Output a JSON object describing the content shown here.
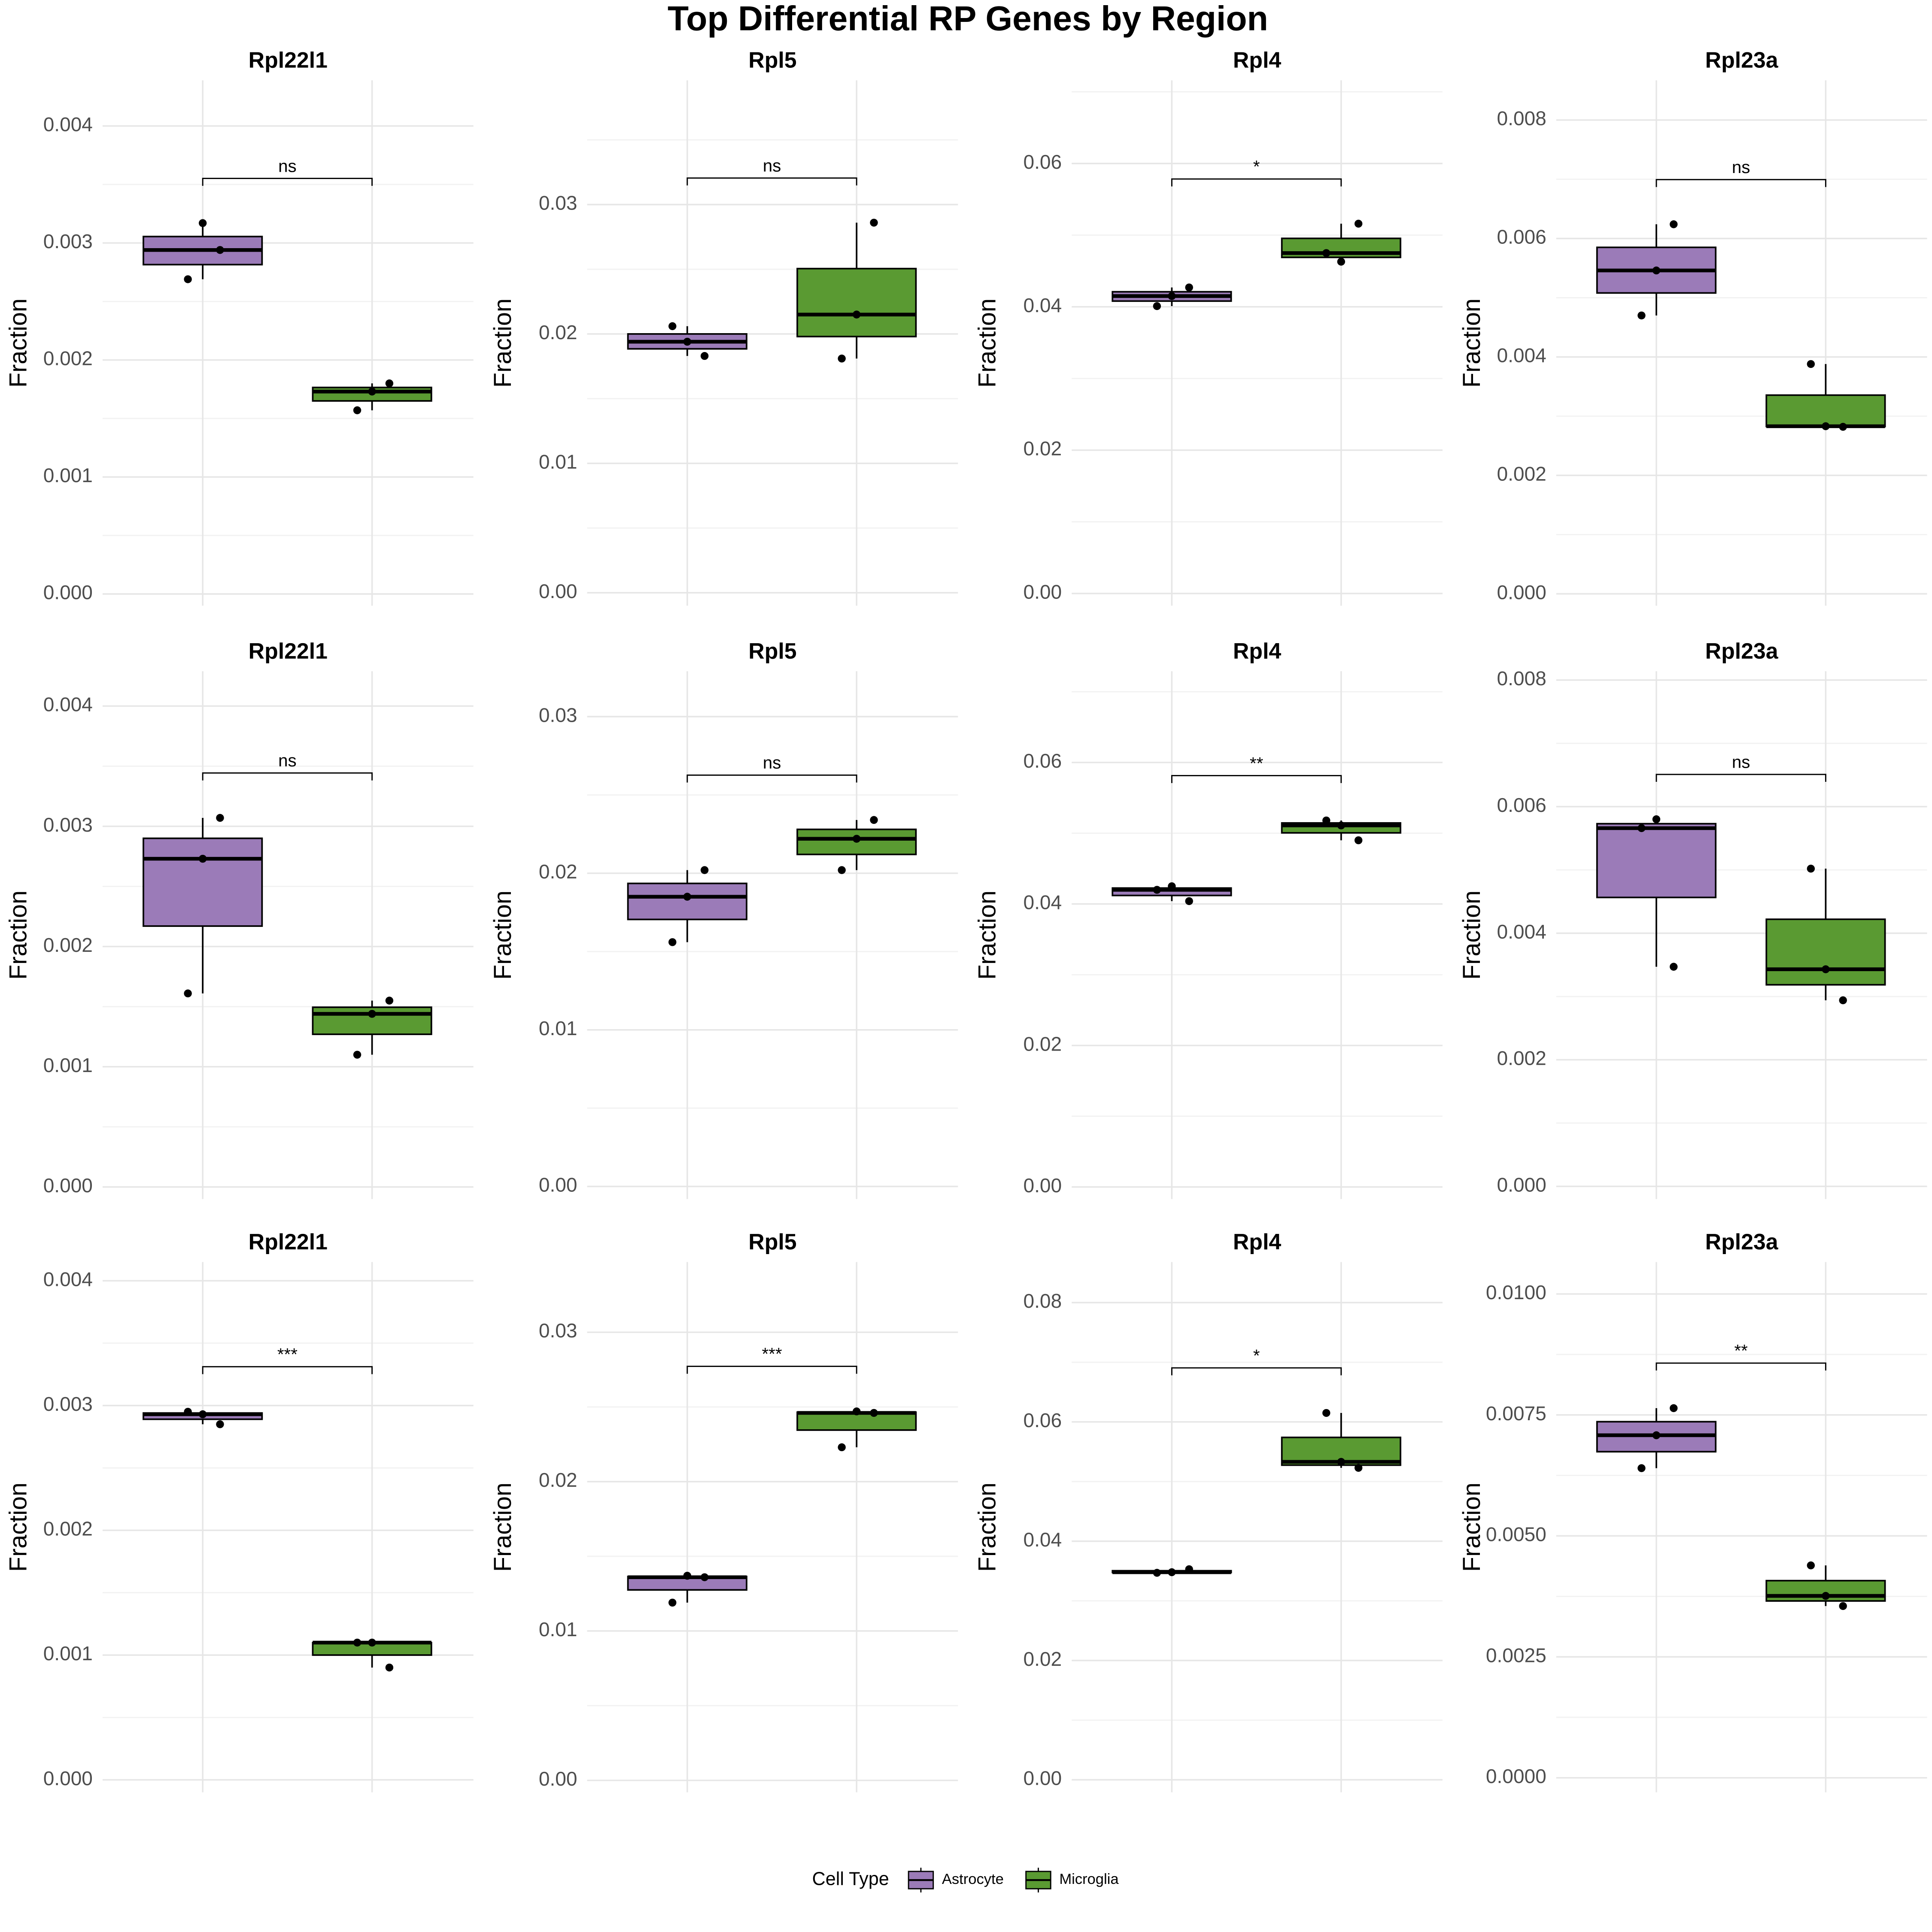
{
  "title": "Top Differential RP Genes by Region",
  "legend": {
    "title": "Cell Type",
    "items": [
      {
        "name": "Astrocyte",
        "color": "#9b7bb8"
      },
      {
        "name": "Microglia",
        "color": "#5a9a32"
      }
    ]
  },
  "chart_data": [
    {
      "type": "box",
      "title": "Rpl22l1",
      "y_label": "Fraction",
      "significance": "ns",
      "ylim": [
        -0.0001,
        0.00439
      ],
      "yticks": [
        {
          "value": 0,
          "label": "0.000"
        },
        0.001,
        0.002,
        0.003,
        0.004
      ],
      "series": [
        {
          "whisker_low": 0.00269,
          "q1": 0.002815,
          "median": 0.00294,
          "q3": 0.003055,
          "whisker_high": 0.00317,
          "points": [
            0.00269,
            0.00294,
            0.00317
          ]
        },
        {
          "whisker_low": 0.00157,
          "q1": 0.00165,
          "median": 0.00173,
          "q3": 0.001765,
          "whisker_high": 0.0018,
          "points": [
            0.00157,
            0.0018,
            0.00173
          ]
        }
      ]
    },
    {
      "type": "box",
      "title": "Rpl5",
      "y_label": "Fraction",
      "significance": "ns",
      "ylim": [
        -0.001,
        0.0396
      ],
      "yticks": [
        {
          "value": 0,
          "label": "0.00"
        },
        0.01,
        0.02,
        0.03
      ],
      "series": [
        {
          "whisker_low": 0.0183,
          "q1": 0.01885,
          "median": 0.0194,
          "q3": 0.02,
          "whisker_high": 0.0206,
          "points": [
            0.0206,
            0.0183,
            0.0194
          ]
        },
        {
          "whisker_low": 0.0181,
          "q1": 0.0198,
          "median": 0.0215,
          "q3": 0.02505,
          "whisker_high": 0.0286,
          "points": [
            0.0181,
            0.0286,
            0.0215
          ]
        }
      ]
    },
    {
      "type": "box",
      "title": "Rpl4",
      "y_label": "Fraction",
      "significance": "*",
      "ylim": [
        -0.0017,
        0.0716
      ],
      "yticks": [
        {
          "value": 0,
          "label": "0.00"
        },
        0.02,
        0.04,
        0.06
      ],
      "series": [
        {
          "whisker_low": 0.0401,
          "q1": 0.0408,
          "median": 0.0415,
          "q3": 0.0421,
          "whisker_high": 0.0427,
          "points": [
            0.0401,
            0.0427,
            0.0415
          ]
        },
        {
          "whisker_low": 0.0463,
          "q1": 0.0469,
          "median": 0.0475,
          "q3": 0.04955,
          "whisker_high": 0.0516,
          "points": [
            0.0475,
            0.0516,
            0.0463
          ]
        }
      ]
    },
    {
      "type": "box",
      "title": "Rpl23a",
      "y_label": "Fraction",
      "significance": "ns",
      "ylim": [
        -0.0002,
        0.00867
      ],
      "yticks": [
        {
          "value": 0,
          "label": "0.000"
        },
        0.002,
        0.004,
        0.006,
        0.008
      ],
      "series": [
        {
          "whisker_low": 0.0047,
          "q1": 0.00508,
          "median": 0.00546,
          "q3": 0.00585,
          "whisker_high": 0.00624,
          "points": [
            0.0047,
            0.00624,
            0.00546
          ]
        },
        {
          "whisker_low": 0.00282,
          "q1": 0.002825,
          "median": 0.00283,
          "q3": 0.003355,
          "whisker_high": 0.00388,
          "points": [
            0.00388,
            0.00282,
            0.00283
          ]
        }
      ]
    },
    {
      "type": "box",
      "title": "Rpl22l1",
      "y_label": "Fraction",
      "significance": "ns",
      "ylim": [
        -0.0001,
        0.00429
      ],
      "yticks": [
        {
          "value": 0,
          "label": "0.000"
        },
        0.001,
        0.002,
        0.003,
        0.004
      ],
      "series": [
        {
          "whisker_low": 0.00161,
          "q1": 0.00217,
          "median": 0.00273,
          "q3": 0.0029,
          "whisker_high": 0.00307,
          "points": [
            0.00161,
            0.00307,
            0.00273
          ]
        },
        {
          "whisker_low": 0.0011,
          "q1": 0.00127,
          "median": 0.00144,
          "q3": 0.001495,
          "whisker_high": 0.00155,
          "points": [
            0.0011,
            0.00155,
            0.00144
          ]
        }
      ]
    },
    {
      "type": "box",
      "title": "Rpl5",
      "y_label": "Fraction",
      "significance": "ns",
      "ylim": [
        -0.0008,
        0.0329
      ],
      "yticks": [
        {
          "value": 0,
          "label": "0.00"
        },
        0.01,
        0.02,
        0.03
      ],
      "series": [
        {
          "whisker_low": 0.0156,
          "q1": 0.01705,
          "median": 0.0185,
          "q3": 0.01935,
          "whisker_high": 0.0202,
          "points": [
            0.0156,
            0.0202,
            0.0185
          ]
        },
        {
          "whisker_low": 0.0202,
          "q1": 0.0212,
          "median": 0.0222,
          "q3": 0.0228,
          "whisker_high": 0.0234,
          "points": [
            0.0202,
            0.0234,
            0.0222
          ]
        }
      ]
    },
    {
      "type": "box",
      "title": "Rpl4",
      "y_label": "Fraction",
      "significance": "**",
      "ylim": [
        -0.0017,
        0.0729
      ],
      "yticks": [
        {
          "value": 0,
          "label": "0.00"
        },
        0.02,
        0.04,
        0.06
      ],
      "series": [
        {
          "whisker_low": 0.0404,
          "q1": 0.0412,
          "median": 0.042,
          "q3": 0.04225,
          "whisker_high": 0.0425,
          "points": [
            0.042,
            0.0404,
            0.0425
          ]
        },
        {
          "whisker_low": 0.049,
          "q1": 0.05005,
          "median": 0.0511,
          "q3": 0.05145,
          "whisker_high": 0.0518,
          "points": [
            0.0518,
            0.049,
            0.0511
          ]
        }
      ]
    },
    {
      "type": "box",
      "title": "Rpl23a",
      "y_label": "Fraction",
      "significance": "ns",
      "ylim": [
        -0.0002,
        0.00814
      ],
      "yticks": [
        {
          "value": 0,
          "label": "0.000"
        },
        0.002,
        0.004,
        0.006,
        0.008
      ],
      "series": [
        {
          "whisker_low": 0.00347,
          "q1": 0.004565,
          "median": 0.00566,
          "q3": 0.00573,
          "whisker_high": 0.0058,
          "points": [
            0.00566,
            0.00347,
            0.0058
          ]
        },
        {
          "whisker_low": 0.00294,
          "q1": 0.003185,
          "median": 0.00343,
          "q3": 0.00422,
          "whisker_high": 0.00502,
          "points": [
            0.00502,
            0.00294,
            0.00343
          ]
        }
      ]
    },
    {
      "type": "box",
      "title": "Rpl22l1",
      "y_label": "Fraction",
      "significance": "***",
      "ylim": [
        -0.0001,
        0.00415
      ],
      "yticks": [
        {
          "value": 0,
          "label": "0.000"
        },
        0.001,
        0.002,
        0.003,
        0.004
      ],
      "series": [
        {
          "whisker_low": 0.00285,
          "q1": 0.00289,
          "median": 0.00293,
          "q3": 0.00294,
          "whisker_high": 0.00295,
          "points": [
            0.00295,
            0.00285,
            0.00293
          ]
        },
        {
          "whisker_low": 0.0009,
          "q1": 0.001,
          "median": 0.0011,
          "q3": 0.0011,
          "whisker_high": 0.0011,
          "points": [
            0.0011,
            0.0009,
            0.0011
          ]
        }
      ]
    },
    {
      "type": "box",
      "title": "Rpl5",
      "y_label": "Fraction",
      "significance": "***",
      "ylim": [
        -0.0008,
        0.0347
      ],
      "yticks": [
        {
          "value": 0,
          "label": "0.00"
        },
        0.01,
        0.02,
        0.03
      ],
      "series": [
        {
          "whisker_low": 0.0119,
          "q1": 0.01275,
          "median": 0.0136,
          "q3": 0.01365,
          "whisker_high": 0.0137,
          "points": [
            0.0119,
            0.0136,
            0.0137
          ]
        },
        {
          "whisker_low": 0.0223,
          "q1": 0.02345,
          "median": 0.0246,
          "q3": 0.02465,
          "whisker_high": 0.0247,
          "points": [
            0.0223,
            0.0246,
            0.0247
          ]
        }
      ]
    },
    {
      "type": "box",
      "title": "Rpl4",
      "y_label": "Fraction",
      "significance": "*",
      "ylim": [
        -0.0021,
        0.0868
      ],
      "yticks": [
        {
          "value": 0,
          "label": "0.00"
        },
        0.02,
        0.04,
        0.06,
        0.08
      ],
      "series": [
        {
          "whisker_low": 0.0347,
          "q1": 0.03475,
          "median": 0.0348,
          "q3": 0.03505,
          "whisker_high": 0.0353,
          "points": [
            0.0347,
            0.0353,
            0.0348
          ]
        },
        {
          "whisker_low": 0.0523,
          "q1": 0.05275,
          "median": 0.0533,
          "q3": 0.0574,
          "whisker_high": 0.0615,
          "points": [
            0.0615,
            0.0523,
            0.0533
          ]
        }
      ]
    },
    {
      "type": "box",
      "title": "Rpl23a",
      "y_label": "Fraction",
      "significance": "**",
      "ylim": [
        -0.0003,
        0.01066
      ],
      "yticks": [
        {
          "value": 0,
          "label": "0.0000"
        },
        0.0025,
        {
          "value": 0.005,
          "label": "0.0050"
        },
        0.0075,
        {
          "value": 0.01,
          "label": "0.0100"
        }
      ],
      "series": [
        {
          "whisker_low": 0.0064,
          "q1": 0.00674,
          "median": 0.00708,
          "q3": 0.00736,
          "whisker_high": 0.00764,
          "points": [
            0.0064,
            0.00764,
            0.00708
          ]
        },
        {
          "whisker_low": 0.00355,
          "q1": 0.003655,
          "median": 0.00376,
          "q3": 0.004075,
          "whisker_high": 0.00439,
          "points": [
            0.00439,
            0.00355,
            0.00376
          ]
        }
      ]
    }
  ]
}
